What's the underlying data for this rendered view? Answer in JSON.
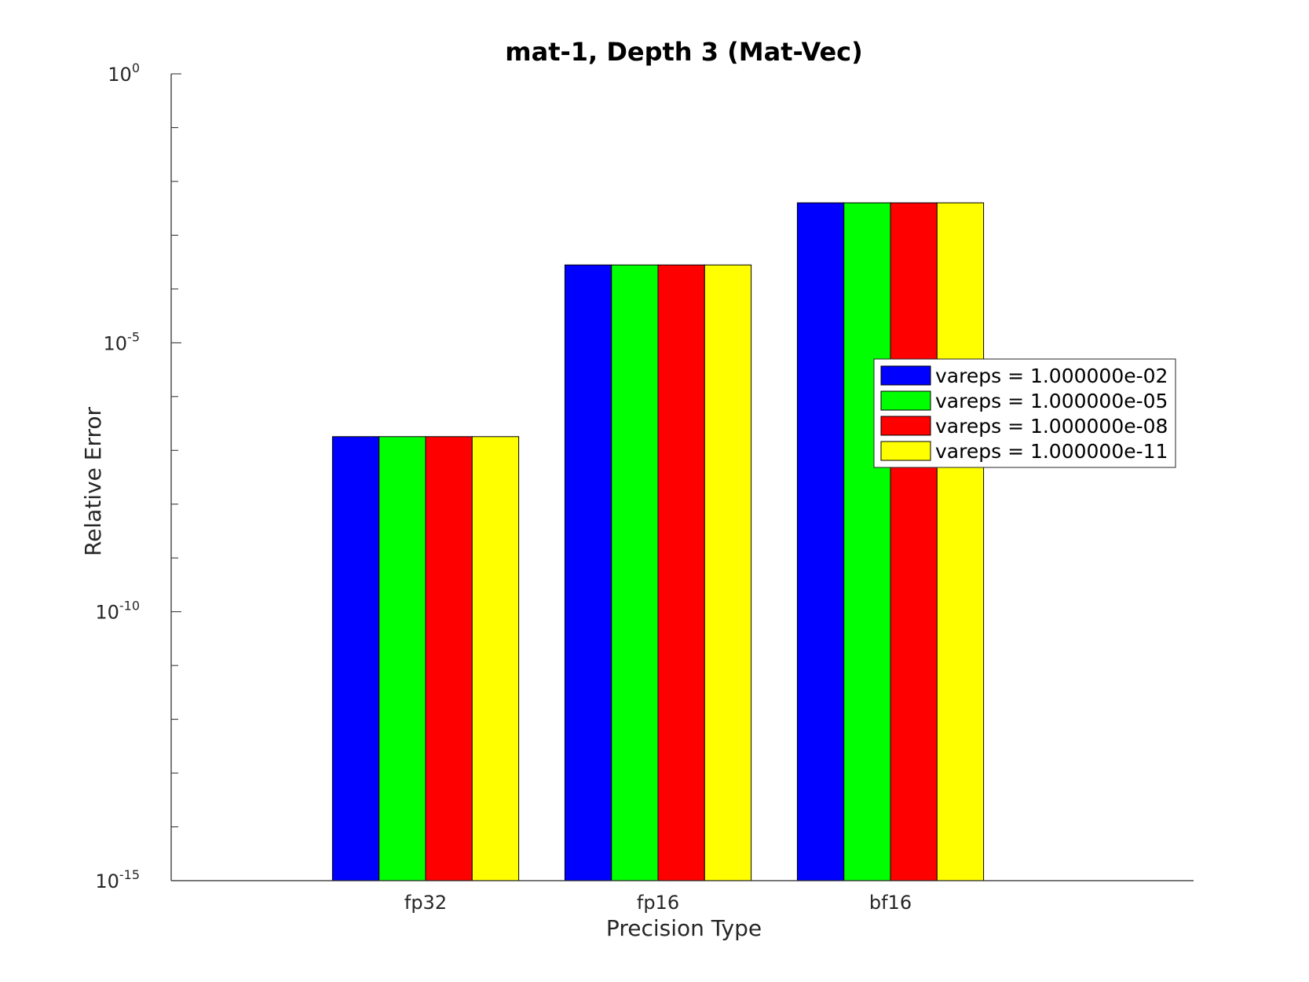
{
  "chart_data": {
    "type": "bar",
    "title": "mat-1, Depth 3 (Mat-Vec)",
    "xlabel": "Precision Type",
    "ylabel": "Relative Error",
    "yscale": "log",
    "ylim": [
      1e-15,
      1
    ],
    "y_tick_labels": [
      {
        "base": "10",
        "exp": "0"
      },
      {
        "base": "10",
        "exp": "-5"
      },
      {
        "base": "10",
        "exp": "-10"
      },
      {
        "base": "10",
        "exp": "-15"
      }
    ],
    "categories": [
      "fp32",
      "fp16",
      "bf16"
    ],
    "series": [
      {
        "name": "vareps = 1.000000e-02",
        "color": "#0000ff",
        "values": [
          1.8e-07,
          0.00028,
          0.004
        ]
      },
      {
        "name": "vareps = 1.000000e-05",
        "color": "#00ff00",
        "values": [
          1.8e-07,
          0.00028,
          0.004
        ]
      },
      {
        "name": "vareps = 1.000000e-08",
        "color": "#ff0000",
        "values": [
          1.8e-07,
          0.00028,
          0.004
        ]
      },
      {
        "name": "vareps = 1.000000e-11",
        "color": "#ffff00",
        "values": [
          1.8e-07,
          0.00028,
          0.004
        ]
      }
    ],
    "legend_position": "right",
    "grid": false
  }
}
